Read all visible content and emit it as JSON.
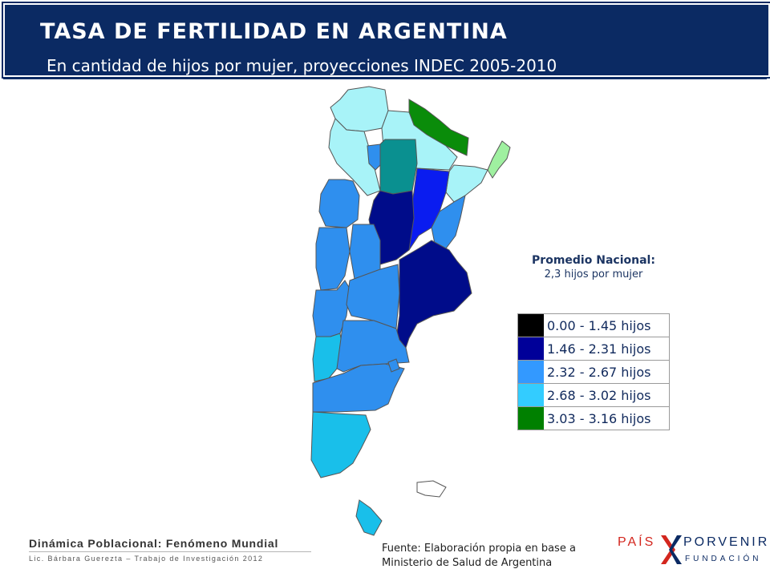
{
  "header": {
    "title": "TASA DE FERTILIDAD EN ARGENTINA",
    "subtitle": "En cantidad de hijos por mujer, proyecciones INDEC 2005-2010"
  },
  "average": {
    "label": "Promedio Nacional",
    "value": "2,3 hijos por mujer"
  },
  "legend": [
    {
      "label": "0.00 - 1.45 hijos",
      "color": "#000000"
    },
    {
      "label": "1.46 - 2.31 hijos",
      "color": "#000099"
    },
    {
      "label": "2.32 - 2.67 hijos",
      "color": "#3399ff"
    },
    {
      "label": "2.68 - 3.02 hijos",
      "color": "#33ccff"
    },
    {
      "label": "3.03 - 3.16 hijos",
      "color": "#008000"
    }
  ],
  "map_colors": {
    "class_1_46_2_31": "#000c8a",
    "class_2_32_2_67": "#2f8fee",
    "class_2_68_3_02": "#a8f3f8",
    "class_2_68_3_02_mid": "#19bfea",
    "class_3_03_3_16": "#0a8c0a",
    "bright_blue": "#0a1cf0",
    "teal": "#0a9090",
    "light_green": "#9ff0a0"
  },
  "footer": {
    "title": "Dinámica Poblacional: Fenómeno Mundial",
    "author": "Lic. Bárbara Guerezta – Trabajo de Investigación 2012",
    "source_line1": "Fuente: Elaboración propia en base a",
    "source_line2": "Ministerio de Salud de Argentina"
  },
  "logo": {
    "word1": "PAÍS",
    "word2": "PORVENIR",
    "word3": "FUNDACIÓN"
  }
}
